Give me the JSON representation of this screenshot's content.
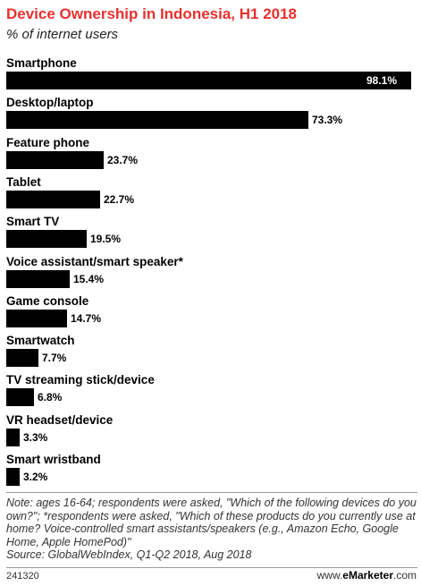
{
  "header": {
    "title": "Device Ownership in Indonesia, H1 2018",
    "subtitle": "% of internet users"
  },
  "chart_data": {
    "type": "bar",
    "orientation": "horizontal",
    "title": "Device Ownership in Indonesia, H1 2018",
    "subtitle": "% of internet users",
    "categories": [
      "Smartphone",
      "Desktop/laptop",
      "Feature phone",
      "Tablet",
      "Smart TV",
      "Voice assistant/smart speaker*",
      "Game console",
      "Smartwatch",
      "TV streaming stick/device",
      "VR headset/device",
      "Smart wristband"
    ],
    "values": [
      98.1,
      73.3,
      23.7,
      22.7,
      19.5,
      15.4,
      14.7,
      7.7,
      6.8,
      3.3,
      3.2
    ],
    "value_labels": [
      "98.1%",
      "73.3%",
      "23.7%",
      "22.7%",
      "19.5%",
      "15.4%",
      "14.7%",
      "7.7%",
      "6.8%",
      "3.3%",
      "3.2%"
    ],
    "xlim": [
      0,
      98.1
    ],
    "bar_color": "#000000",
    "grid": false
  },
  "footer": {
    "note": "Note: ages 16-64; respondents were asked, \"Which of the following devices do you own?\"; *respondents were asked, \"Which of these products do you currently use at home? Voice-controlled smart assistants/speakers (e.g., Amazon Echo, Google Home, Apple HomePod)\"",
    "source": "Source: GlobalWebIndex, Q1-Q2 2018, Aug 2018",
    "chart_id": "241320",
    "brand_prefix": "www.",
    "brand_name": "eMarketer",
    "brand_suffix": ".com"
  },
  "colors": {
    "title": "#e8312f",
    "bars": "#000000"
  }
}
